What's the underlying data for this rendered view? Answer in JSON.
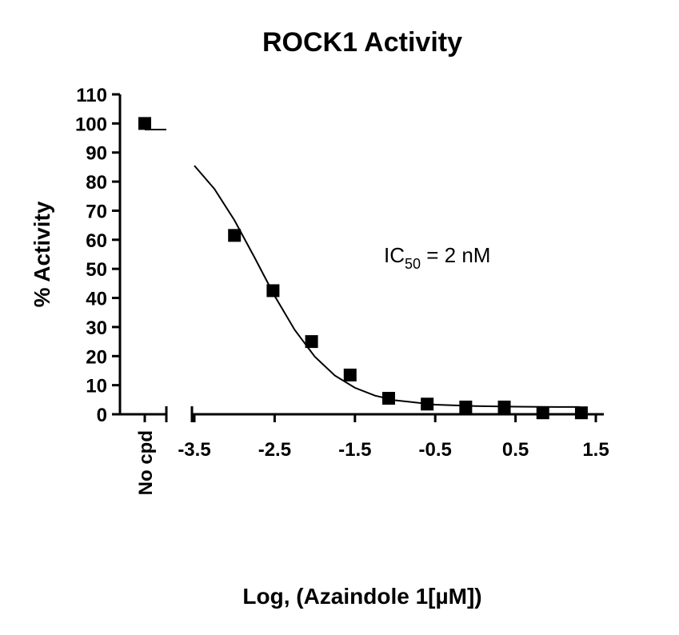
{
  "chart_data": {
    "type": "scatter",
    "title": "ROCK1 Activity",
    "xlabel": "Log, (Azaindole 1[µM])",
    "ylabel": "% Activity",
    "annotation": {
      "main": "IC",
      "sub": "50",
      "rest": " = 2 nM"
    },
    "control": {
      "label": "No cpd",
      "value": 100
    },
    "x": [
      -3.0,
      -2.52,
      -2.04,
      -1.56,
      -1.08,
      -0.6,
      -0.12,
      0.36,
      0.84,
      1.32
    ],
    "values": [
      61.5,
      42.5,
      25,
      13.5,
      5.5,
      3.5,
      2.5,
      2.5,
      0.5,
      0.5
    ],
    "color": "#000000",
    "curve": {
      "x": [
        -3.5,
        -3.25,
        -3.0,
        -2.75,
        -2.5,
        -2.25,
        -2.0,
        -1.75,
        -1.5,
        -1.25,
        -1.0,
        -0.5,
        0.0,
        0.5,
        1.0,
        1.3
      ],
      "values": [
        85.5,
        77.5,
        66.7,
        53.9,
        40.7,
        29.0,
        19.8,
        13.3,
        9.1,
        6.4,
        4.8,
        3.3,
        2.8,
        2.6,
        2.5,
        2.5
      ]
    },
    "xlim": [
      -3.5,
      1.5
    ],
    "ylim": [
      0,
      110
    ],
    "xticks": [
      -3.5,
      -2.5,
      -1.5,
      -0.5,
      0.5,
      1.5
    ],
    "yticks": [
      0,
      10,
      20,
      30,
      40,
      50,
      60,
      70,
      80,
      90,
      100,
      110
    ]
  }
}
